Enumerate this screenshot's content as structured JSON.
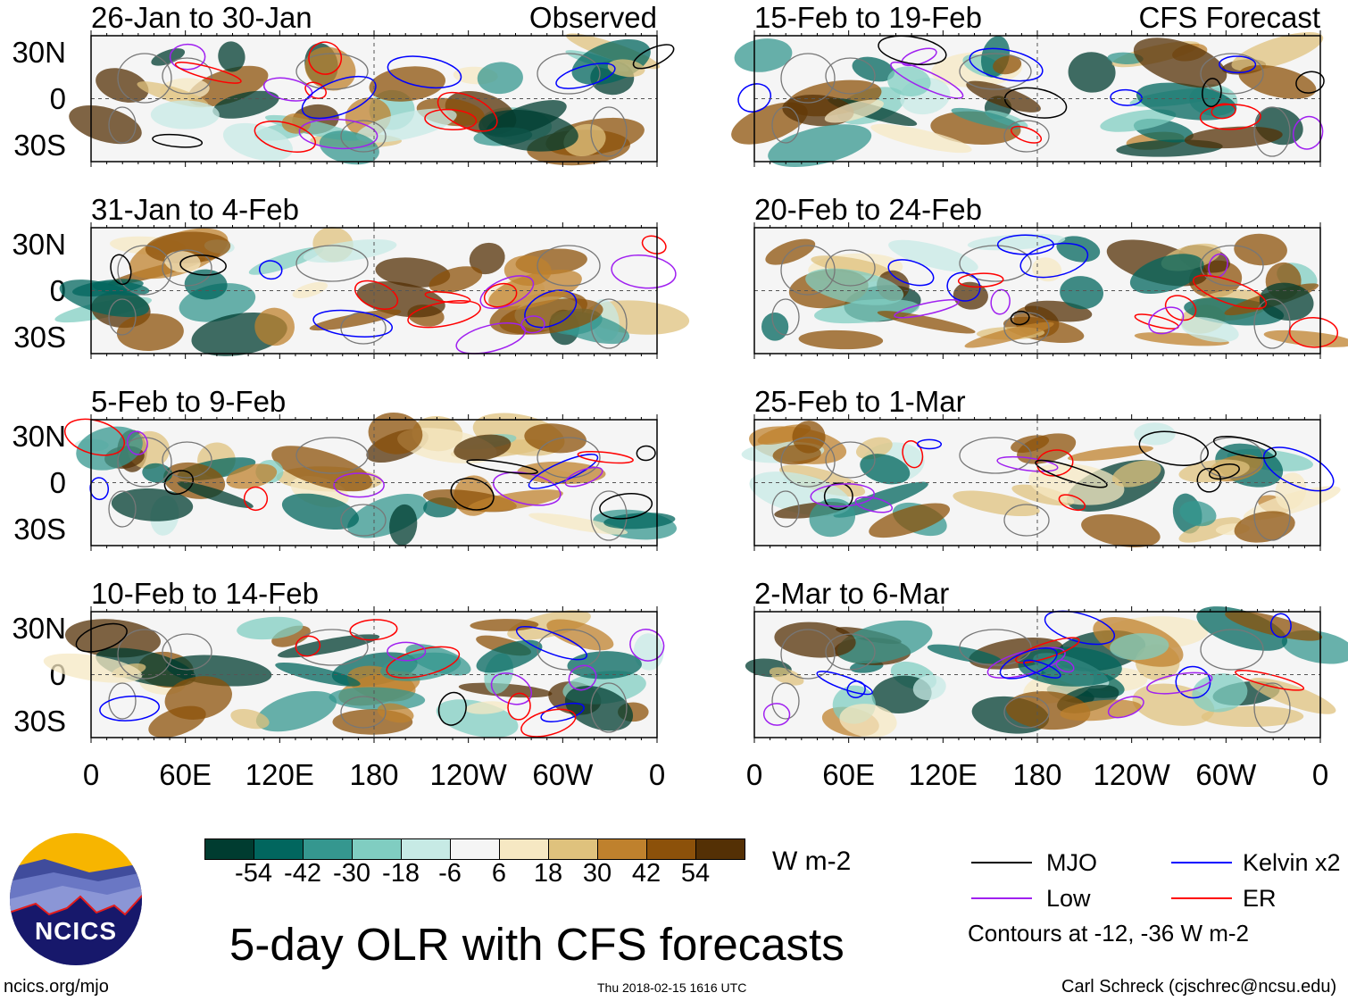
{
  "panels": {
    "left": [
      {
        "title": "26-Jan to 30-Jan",
        "tag": "Observed"
      },
      {
        "title": "31-Jan to 4-Feb"
      },
      {
        "title": "5-Feb to 9-Feb"
      },
      {
        "title": "10-Feb to 14-Feb"
      }
    ],
    "right": [
      {
        "title": "15-Feb to 19-Feb",
        "tag": "CFS Forecast"
      },
      {
        "title": "20-Feb to 24-Feb"
      },
      {
        "title": "25-Feb to 1-Mar"
      },
      {
        "title": "2-Mar to 6-Mar"
      }
    ]
  },
  "lat_labels": [
    "30N",
    "0",
    "30S"
  ],
  "lon_labels": [
    "0",
    "60E",
    "120E",
    "180",
    "120W",
    "60W",
    "0"
  ],
  "colorbar": {
    "ticks": [
      "-54",
      "-42",
      "-30",
      "-18",
      "-6",
      "6",
      "18",
      "30",
      "42",
      "54"
    ],
    "colors": [
      "#003c30",
      "#01665e",
      "#35978f",
      "#80cdc1",
      "#c7eae5",
      "#f5f5f5",
      "#f6e8c3",
      "#dfc27d",
      "#bf812d",
      "#8c510a",
      "#543005"
    ],
    "units": "W m-2"
  },
  "legend": {
    "items": [
      {
        "label": "MJO",
        "color": "#000000"
      },
      {
        "label": "Kelvin x2",
        "color": "#0000ff"
      },
      {
        "label": "Low",
        "color": "#a020f0"
      },
      {
        "label": "ER",
        "color": "#ff0000"
      }
    ],
    "note": "Contours at -12, -36 W m-2"
  },
  "title": "5-day OLR with CFS forecasts",
  "logo_text": "NCICS",
  "site": "ncics.org/mjo",
  "timestamp": "Thu 2018-02-15 1616 UTC",
  "credit": "Carl Schreck (cjschrec@ncsu.edu)"
}
